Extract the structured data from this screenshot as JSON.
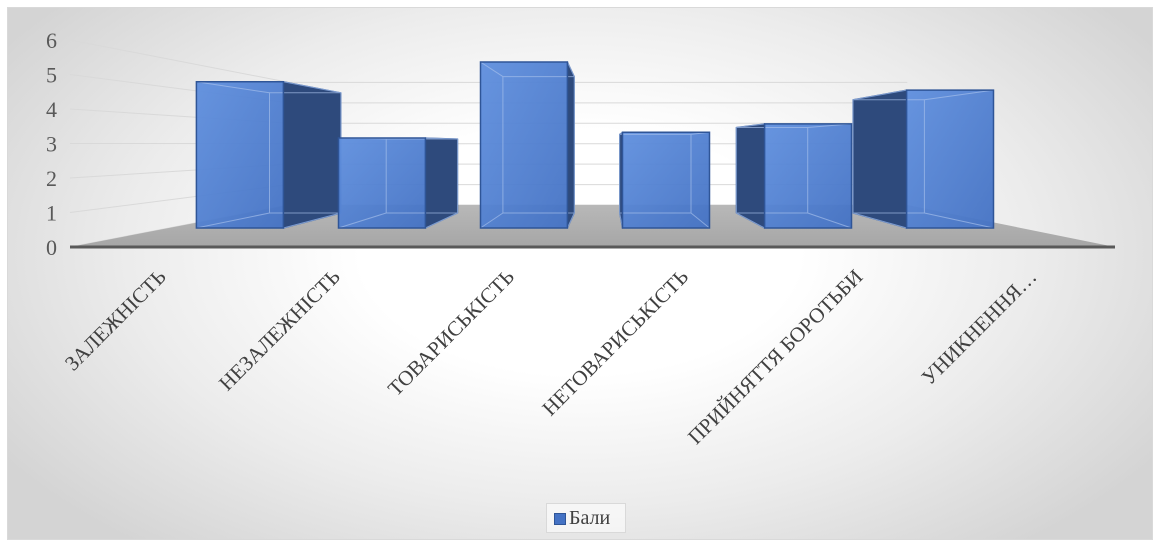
{
  "chart_data": {
    "type": "bar",
    "view": "3d-perspective",
    "categories": [
      "ЗАЛЕЖНІСТЬ",
      "НЕЗАЛЕЖНІСТЬ",
      "ТОВАРИСЬКІСТЬ",
      "НЕТОВАРИСЬКІСТЬ",
      "ПРИЙНЯТТЯ БОРОТЬБИ",
      "УНИКНЕННЯ…"
    ],
    "series": [
      {
        "name": "Бали",
        "values": [
          5.2,
          3.2,
          5.9,
          3.4,
          3.7,
          4.9
        ],
        "color": "#4472C4"
      }
    ],
    "ylim": [
      0,
      6
    ],
    "yticks": [
      0,
      1,
      2,
      3,
      4,
      5,
      6
    ],
    "grid": true,
    "legend_position": "bottom"
  },
  "colors": {
    "bar_front": "#4472C4",
    "bar_front_light": "#5F8FDE",
    "bar_side": "#2E4A7C",
    "bar_edge": "#2F5597",
    "bar_inner": "#A9C2EC",
    "floor": "#A6A6A6",
    "floor_light": "#B8B8B8",
    "floor_edge": "#595959",
    "gridline": "#D9D9D9",
    "axis_text": "#595959",
    "label_text": "#404040"
  }
}
